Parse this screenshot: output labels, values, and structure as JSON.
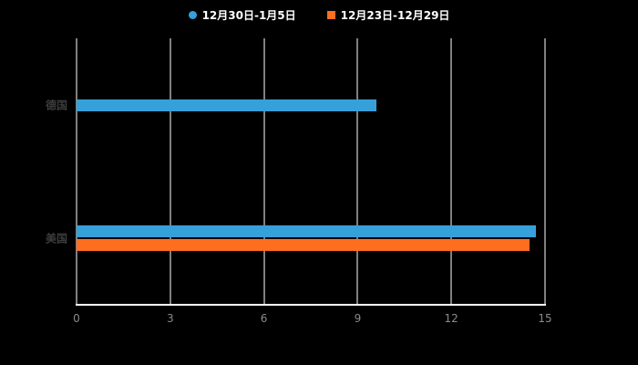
{
  "legend": {
    "items": [
      {
        "label": "12月30日-1月5日",
        "color": "#36A0DA",
        "marker": "circle"
      },
      {
        "label": "12月23日-12月29日",
        "color": "#FF6D1F",
        "marker": "square"
      }
    ]
  },
  "chart_data": {
    "type": "bar",
    "orientation": "horizontal",
    "title": "",
    "xlabel": "",
    "ylabel": "",
    "categories": [
      "德国",
      "美国"
    ],
    "series": [
      {
        "name": "12月30日-1月5日",
        "color": "#36A0DA",
        "values": [
          9.6,
          14.7
        ]
      },
      {
        "name": "12月23日-12月29日",
        "color": "#FF6D1F",
        "values": [
          0,
          14.5
        ]
      }
    ],
    "xticks": [
      0,
      3,
      6,
      9,
      12,
      15
    ],
    "xlim": [
      0,
      15
    ],
    "grid": true,
    "legend_position": "top",
    "colors": {
      "background": "#000000",
      "gridline": "#ffffff",
      "axis_line": "#ffffff",
      "tick_label": "#8a8a8a",
      "category_label": "#3c3c3c",
      "legend_text": "#ffffff"
    }
  }
}
